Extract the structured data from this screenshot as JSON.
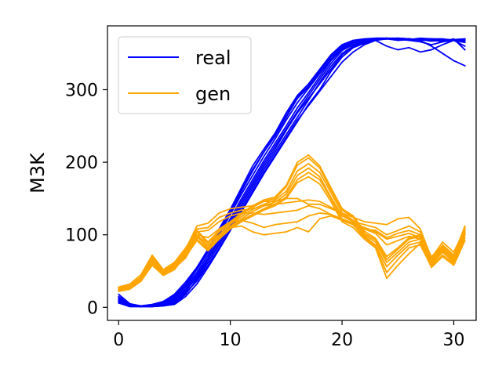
{
  "chart_data": {
    "type": "line",
    "title": "",
    "xlabel": "",
    "ylabel": "M3K",
    "xlim": [
      -1,
      32
    ],
    "ylim": [
      -18,
      388
    ],
    "xticks": [
      0,
      10,
      20,
      30
    ],
    "yticks": [
      0,
      100,
      200,
      300
    ],
    "grid": false,
    "legend": {
      "placement": "upper-left",
      "entries": [
        {
          "label": "real",
          "color": "#0000ff"
        },
        {
          "label": "gen",
          "color": "#ffa500"
        }
      ]
    },
    "x": [
      0,
      1,
      2,
      3,
      4,
      5,
      6,
      7,
      8,
      9,
      10,
      11,
      12,
      13,
      14,
      15,
      16,
      17,
      18,
      19,
      20,
      21,
      22,
      23,
      24,
      25,
      26,
      27,
      28,
      29,
      30,
      31
    ],
    "series": [
      {
        "group": "real",
        "color": "#0000ff",
        "values": [
          18,
          5,
          2,
          4,
          8,
          18,
          35,
          55,
          80,
          108,
          135,
          165,
          195,
          218,
          240,
          268,
          292,
          308,
          328,
          348,
          362,
          368,
          370,
          371,
          371,
          371,
          370,
          369,
          368,
          368,
          368,
          369
        ]
      },
      {
        "group": "real",
        "color": "#0000ff",
        "values": [
          12,
          3,
          1,
          2,
          5,
          12,
          28,
          48,
          72,
          100,
          128,
          156,
          182,
          208,
          232,
          258,
          282,
          302,
          322,
          342,
          358,
          365,
          368,
          370,
          371,
          370,
          368,
          366,
          362,
          366,
          370,
          355
        ]
      },
      {
        "group": "real",
        "color": "#0000ff",
        "values": [
          8,
          2,
          1,
          1,
          3,
          8,
          22,
          42,
          66,
          92,
          118,
          146,
          172,
          198,
          222,
          246,
          270,
          292,
          314,
          336,
          354,
          362,
          366,
          370,
          370,
          368,
          369,
          370,
          369,
          366,
          368,
          360
        ]
      },
      {
        "group": "real",
        "color": "#0000ff",
        "values": [
          6,
          1,
          1,
          2,
          3,
          5,
          18,
          38,
          62,
          86,
          112,
          138,
          164,
          190,
          214,
          238,
          262,
          286,
          310,
          332,
          350,
          360,
          366,
          369,
          370,
          371,
          370,
          368,
          360,
          350,
          340,
          333
        ]
      },
      {
        "group": "real",
        "color": "#0000ff",
        "values": [
          10,
          2,
          1,
          1,
          2,
          4,
          15,
          32,
          55,
          80,
          106,
          132,
          158,
          184,
          208,
          232,
          256,
          280,
          300,
          325,
          345,
          358,
          364,
          368,
          360,
          355,
          358,
          352,
          355,
          362,
          368,
          365
        ]
      },
      {
        "group": "real",
        "color": "#0000ff",
        "values": [
          14,
          4,
          2,
          3,
          6,
          14,
          30,
          52,
          76,
          104,
          130,
          160,
          188,
          214,
          236,
          262,
          288,
          304,
          325,
          345,
          360,
          366,
          369,
          371,
          371,
          369,
          370,
          369,
          367,
          368,
          369,
          370
        ]
      },
      {
        "group": "real",
        "color": "#0000ff",
        "values": [
          9,
          2,
          1,
          2,
          4,
          10,
          25,
          45,
          68,
          95,
          122,
          150,
          176,
          202,
          226,
          250,
          275,
          296,
          318,
          340,
          356,
          364,
          367,
          370,
          371,
          370,
          369,
          371,
          370,
          369,
          369,
          368
        ]
      },
      {
        "group": "real",
        "color": "#0000ff",
        "values": [
          7,
          1,
          1,
          1,
          2,
          6,
          20,
          36,
          58,
          82,
          108,
          134,
          160,
          186,
          210,
          234,
          258,
          278,
          298,
          318,
          338,
          352,
          362,
          368,
          370,
          371,
          370,
          369,
          370,
          370,
          368,
          367
        ]
      },
      {
        "group": "real",
        "color": "#0000ff",
        "values": [
          11,
          3,
          1,
          2,
          5,
          11,
          24,
          40,
          62,
          88,
          114,
          142,
          168,
          194,
          218,
          244,
          268,
          288,
          308,
          328,
          348,
          360,
          365,
          369,
          370,
          370,
          368,
          369,
          369,
          367,
          368,
          369
        ]
      },
      {
        "group": "real",
        "color": "#0000ff",
        "values": [
          15,
          4,
          2,
          3,
          7,
          16,
          32,
          54,
          78,
          106,
          132,
          162,
          190,
          214,
          238,
          264,
          290,
          305,
          326,
          346,
          360,
          366,
          369,
          370,
          371,
          370,
          369,
          370,
          370,
          368,
          369,
          370
        ]
      },
      {
        "group": "gen",
        "color": "#ffa500",
        "values": [
          28,
          32,
          45,
          72,
          52,
          62,
          82,
          106,
          90,
          106,
          118,
          130,
          140,
          148,
          152,
          168,
          200,
          210,
          195,
          165,
          136,
          126,
          105,
          95,
          70,
          82,
          96,
          100,
          70,
          85,
          72,
          112
        ]
      },
      {
        "group": "gen",
        "color": "#ffa500",
        "values": [
          26,
          30,
          42,
          70,
          50,
          60,
          80,
          104,
          88,
          104,
          116,
          128,
          138,
          146,
          150,
          166,
          196,
          206,
          192,
          162,
          134,
          124,
          102,
          93,
          66,
          80,
          94,
          98,
          66,
          84,
          70,
          110
        ]
      },
      {
        "group": "gen",
        "color": "#ffa500",
        "values": [
          25,
          28,
          40,
          68,
          48,
          58,
          78,
          100,
          85,
          100,
          115,
          125,
          135,
          142,
          148,
          160,
          188,
          198,
          186,
          158,
          130,
          120,
          100,
          90,
          62,
          76,
          90,
          94,
          62,
          80,
          66,
          105
        ]
      },
      {
        "group": "gen",
        "color": "#ffa500",
        "values": [
          24,
          27,
          38,
          66,
          46,
          56,
          75,
          98,
          82,
          98,
          112,
          122,
          132,
          140,
          145,
          156,
          182,
          192,
          180,
          152,
          126,
          118,
          98,
          86,
          56,
          72,
          86,
          90,
          58,
          76,
          62,
          100
        ]
      },
      {
        "group": "gen",
        "color": "#ffa500",
        "values": [
          22,
          25,
          36,
          62,
          44,
          52,
          72,
          94,
          80,
          96,
          110,
          120,
          128,
          136,
          142,
          152,
          176,
          186,
          176,
          150,
          122,
          114,
          96,
          84,
          48,
          66,
          82,
          86,
          56,
          72,
          60,
          96
        ]
      },
      {
        "group": "gen",
        "color": "#ffa500",
        "values": [
          23,
          26,
          37,
          64,
          45,
          54,
          70,
          92,
          78,
          94,
          108,
          118,
          126,
          134,
          140,
          150,
          172,
          180,
          170,
          146,
          118,
          110,
          94,
          82,
          40,
          58,
          74,
          88,
          55,
          70,
          58,
          92
        ]
      },
      {
        "group": "gen",
        "color": "#ffa500",
        "values": [
          27,
          30,
          40,
          64,
          48,
          58,
          80,
          112,
          116,
          130,
          136,
          138,
          140,
          146,
          146,
          150,
          150,
          142,
          142,
          136,
          130,
          124,
          118,
          116,
          114,
          122,
          124,
          108,
          68,
          90,
          76,
          108
        ]
      },
      {
        "group": "gen",
        "color": "#ffa500",
        "values": [
          25,
          28,
          38,
          60,
          46,
          56,
          78,
          108,
          110,
          124,
          130,
          134,
          136,
          140,
          142,
          144,
          146,
          148,
          146,
          138,
          128,
          118,
          114,
          110,
          100,
          106,
          112,
          104,
          64,
          86,
          72,
          106
        ]
      },
      {
        "group": "gen",
        "color": "#ffa500",
        "values": [
          24,
          27,
          36,
          58,
          44,
          54,
          74,
          104,
          106,
          118,
          126,
          130,
          130,
          128,
          130,
          132,
          134,
          140,
          136,
          128,
          120,
          114,
          108,
          106,
          96,
          102,
          106,
          100,
          62,
          82,
          70,
          104
        ]
      },
      {
        "group": "gen",
        "color": "#ffa500",
        "values": [
          26,
          29,
          39,
          60,
          46,
          55,
          70,
          100,
          96,
          108,
          118,
          120,
          116,
          110,
          114,
          116,
          118,
          126,
          130,
          128,
          122,
          116,
          110,
          104,
          94,
          98,
          102,
          96,
          60,
          80,
          68,
          102
        ]
      },
      {
        "group": "gen",
        "color": "#ffa500",
        "values": [
          25,
          28,
          37,
          58,
          45,
          54,
          68,
          96,
          90,
          100,
          110,
          112,
          104,
          100,
          102,
          104,
          110,
          104,
          122,
          126,
          120,
          114,
          108,
          102,
          86,
          92,
          98,
          94,
          58,
          78,
          64,
          100
        ]
      }
    ]
  }
}
